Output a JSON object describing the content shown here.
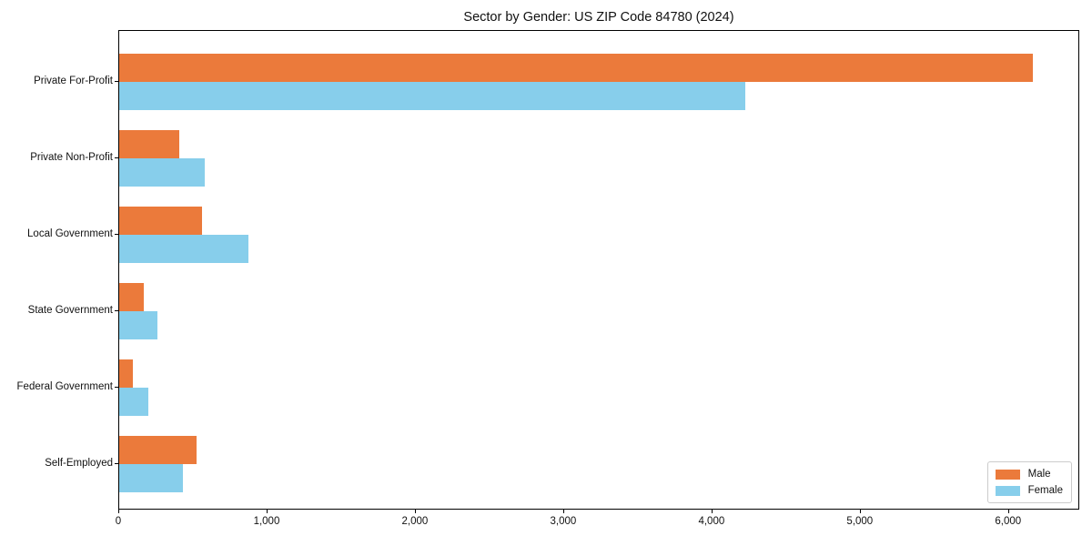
{
  "chart_data": {
    "type": "bar",
    "orientation": "horizontal",
    "title": "Sector by Gender: US ZIP Code 84780 (2024)",
    "categories": [
      "Private For-Profit",
      "Private Non-Profit",
      "Local Government",
      "State Government",
      "Federal Government",
      "Self-Employed"
    ],
    "series": [
      {
        "name": "Male",
        "color": "#eb7a3b",
        "values": [
          6170,
          405,
          560,
          165,
          90,
          520
        ]
      },
      {
        "name": "Female",
        "color": "#87ceeb",
        "values": [
          4230,
          580,
          870,
          260,
          195,
          430
        ]
      }
    ],
    "xlabel": "",
    "ylabel": "",
    "xlim": [
      0,
      6480
    ],
    "xticks": [
      0,
      1000,
      2000,
      3000,
      4000,
      5000,
      6000
    ],
    "xtick_labels": [
      "0",
      "1,000",
      "2,000",
      "3,000",
      "4,000",
      "5,000",
      "6,000"
    ],
    "grid": false,
    "legend": {
      "position": "lower right",
      "items": [
        "Male",
        "Female"
      ]
    },
    "colors": {
      "male": "#eb7a3b",
      "female": "#87ceeb",
      "spine": "#000000",
      "background": "#ffffff"
    }
  }
}
